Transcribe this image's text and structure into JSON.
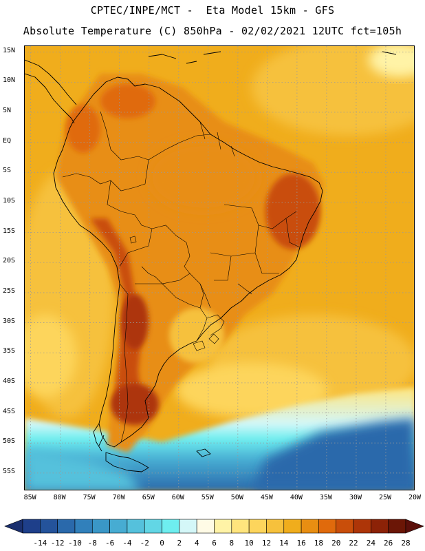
{
  "header": {
    "line1": "CPTEC/INPE/MCT -  Eta Model 15km - GFS",
    "line2": "Absolute Temperature (C) 850hPa - 02/02/2021 12UTC fct=105h"
  },
  "map": {
    "lat_ticks": [
      "15N",
      "10N",
      "5N",
      "EQ",
      "5S",
      "10S",
      "15S",
      "20S",
      "25S",
      "30S",
      "35S",
      "40S",
      "45S",
      "50S",
      "55S"
    ],
    "lon_ticks": [
      "85W",
      "80W",
      "75W",
      "70W",
      "65W",
      "60W",
      "55W",
      "50W",
      "45W",
      "40W",
      "35W",
      "30W",
      "25W",
      "20W"
    ],
    "lat_range": [
      -58,
      16
    ],
    "lon_range": [
      -86,
      -20
    ]
  },
  "colorbar": {
    "labels": [
      "-14",
      "-12",
      "-10",
      "-8",
      "-6",
      "-4",
      "-2",
      "0",
      "2",
      "4",
      "6",
      "8",
      "10",
      "12",
      "14",
      "16",
      "18",
      "20",
      "22",
      "24",
      "26",
      "28"
    ],
    "colors": [
      "#1e3f8a",
      "#24539b",
      "#2a69ab",
      "#3180bb",
      "#3a97c7",
      "#47acd2",
      "#55c1dc",
      "#62d6e5",
      "#6eeeef",
      "#d4f7f8",
      "#fffbe6",
      "#fff3a6",
      "#ffe57d",
      "#fdd55c",
      "#f6c13c",
      "#f0ad1c",
      "#e88e12",
      "#e06a0c",
      "#c94e0a",
      "#ad3508",
      "#8c2207",
      "#6b1606"
    ]
  }
}
